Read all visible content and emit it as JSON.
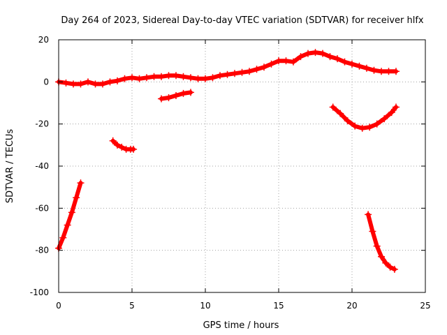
{
  "chart_data": {
    "type": "scatter",
    "title": "Day 264 of 2023, Sidereal Day-to-day VTEC variation (SDTVAR) for receiver hlfx",
    "xlabel": "GPS time / hours",
    "ylabel": "SDTVAR / TECUs",
    "xlim": [
      0,
      25
    ],
    "ylim": [
      -100,
      20
    ],
    "xticks": [
      0,
      5,
      10,
      15,
      20,
      25
    ],
    "yticks": [
      -100,
      -80,
      -60,
      -40,
      -20,
      0,
      20
    ],
    "grid": true,
    "marker_color": "#ff0000",
    "series": [
      {
        "name": "main trace",
        "x": [
          0,
          0.5,
          1,
          1.5,
          2,
          2.5,
          3,
          3.5,
          4,
          4.5,
          5,
          5.5,
          6,
          6.5,
          7,
          7.5,
          8,
          8.5,
          9,
          9.5,
          10,
          10.5,
          11,
          11.5,
          12,
          12.5,
          13,
          13.5,
          14,
          14.5,
          15,
          15.5,
          16,
          16.5,
          17,
          17.5,
          18,
          18.5,
          19,
          19.5,
          20,
          20.5,
          21,
          21.5,
          22,
          22.5,
          23
        ],
        "y": [
          0,
          -0.5,
          -1,
          -1,
          0,
          -1,
          -1,
          0,
          0.5,
          1.5,
          2,
          1.5,
          2,
          2.5,
          2.5,
          3,
          3,
          2.5,
          2,
          1.5,
          1.5,
          2,
          3,
          3.5,
          4,
          4.5,
          5,
          6,
          7,
          8.5,
          10,
          10,
          9.5,
          12,
          13.5,
          14,
          13.5,
          12,
          11,
          9.5,
          8.5,
          7.5,
          6.5,
          5.5,
          5,
          5,
          5
        ]
      },
      {
        "name": "early descent",
        "x": [
          0,
          0.3,
          0.6,
          0.9,
          1.2,
          1.5
        ],
        "y": [
          -79,
          -74,
          -68,
          -62,
          -55,
          -48
        ]
      },
      {
        "name": "arc near 4h",
        "x": [
          3.7,
          4.0,
          4.3,
          4.6,
          4.9,
          5.1
        ],
        "y": [
          -28,
          -30,
          -31,
          -32,
          -32,
          -32
        ]
      },
      {
        "name": "short segment",
        "x": [
          7.0,
          7.5,
          8.0,
          8.5,
          9.0
        ],
        "y": [
          -8,
          -7.5,
          -6.5,
          -5.5,
          -5
        ]
      },
      {
        "name": "dip near 20h",
        "x": [
          18.7,
          19.2,
          19.7,
          20.2,
          20.7,
          21.2,
          21.7,
          22.2,
          22.7,
          23.0
        ],
        "y": [
          -12,
          -15,
          -18.5,
          -21,
          -22,
          -21.5,
          -20,
          -17.5,
          -14.5,
          -12
        ]
      },
      {
        "name": "late descent",
        "x": [
          21.1,
          21.4,
          21.7,
          22.0,
          22.3,
          22.6,
          22.9
        ],
        "y": [
          -63,
          -71,
          -78,
          -83,
          -86,
          -88,
          -89
        ]
      }
    ]
  }
}
